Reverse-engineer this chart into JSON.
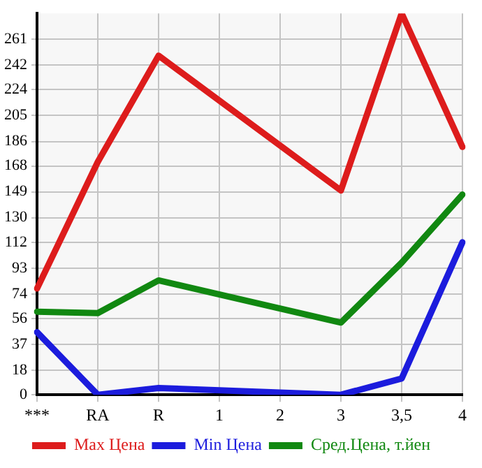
{
  "chart_data": {
    "type": "line",
    "categories": [
      "***",
      "RA",
      "R",
      "1",
      "2",
      "3",
      "3,5",
      "4"
    ],
    "series": [
      {
        "name": "Max Цена",
        "color": "#dd1c1c",
        "values": [
          78,
          171,
          249,
          null,
          null,
          150,
          280,
          182
        ]
      },
      {
        "name": "Min Цена",
        "color": "#1c1cdd",
        "values": [
          46,
          0,
          5,
          null,
          null,
          0,
          12,
          112
        ]
      },
      {
        "name": "Сред.Цена, т.йен",
        "color": "#118811",
        "values": [
          61,
          60,
          84,
          null,
          null,
          53,
          97,
          147
        ]
      }
    ],
    "ylim": [
      0,
      280
    ],
    "yticks": [
      0,
      18,
      37,
      56,
      74,
      93,
      112,
      130,
      149,
      168,
      186,
      205,
      224,
      242,
      261
    ],
    "grid": true,
    "legend": "bottom",
    "marker": "none",
    "line_style": "solid"
  }
}
